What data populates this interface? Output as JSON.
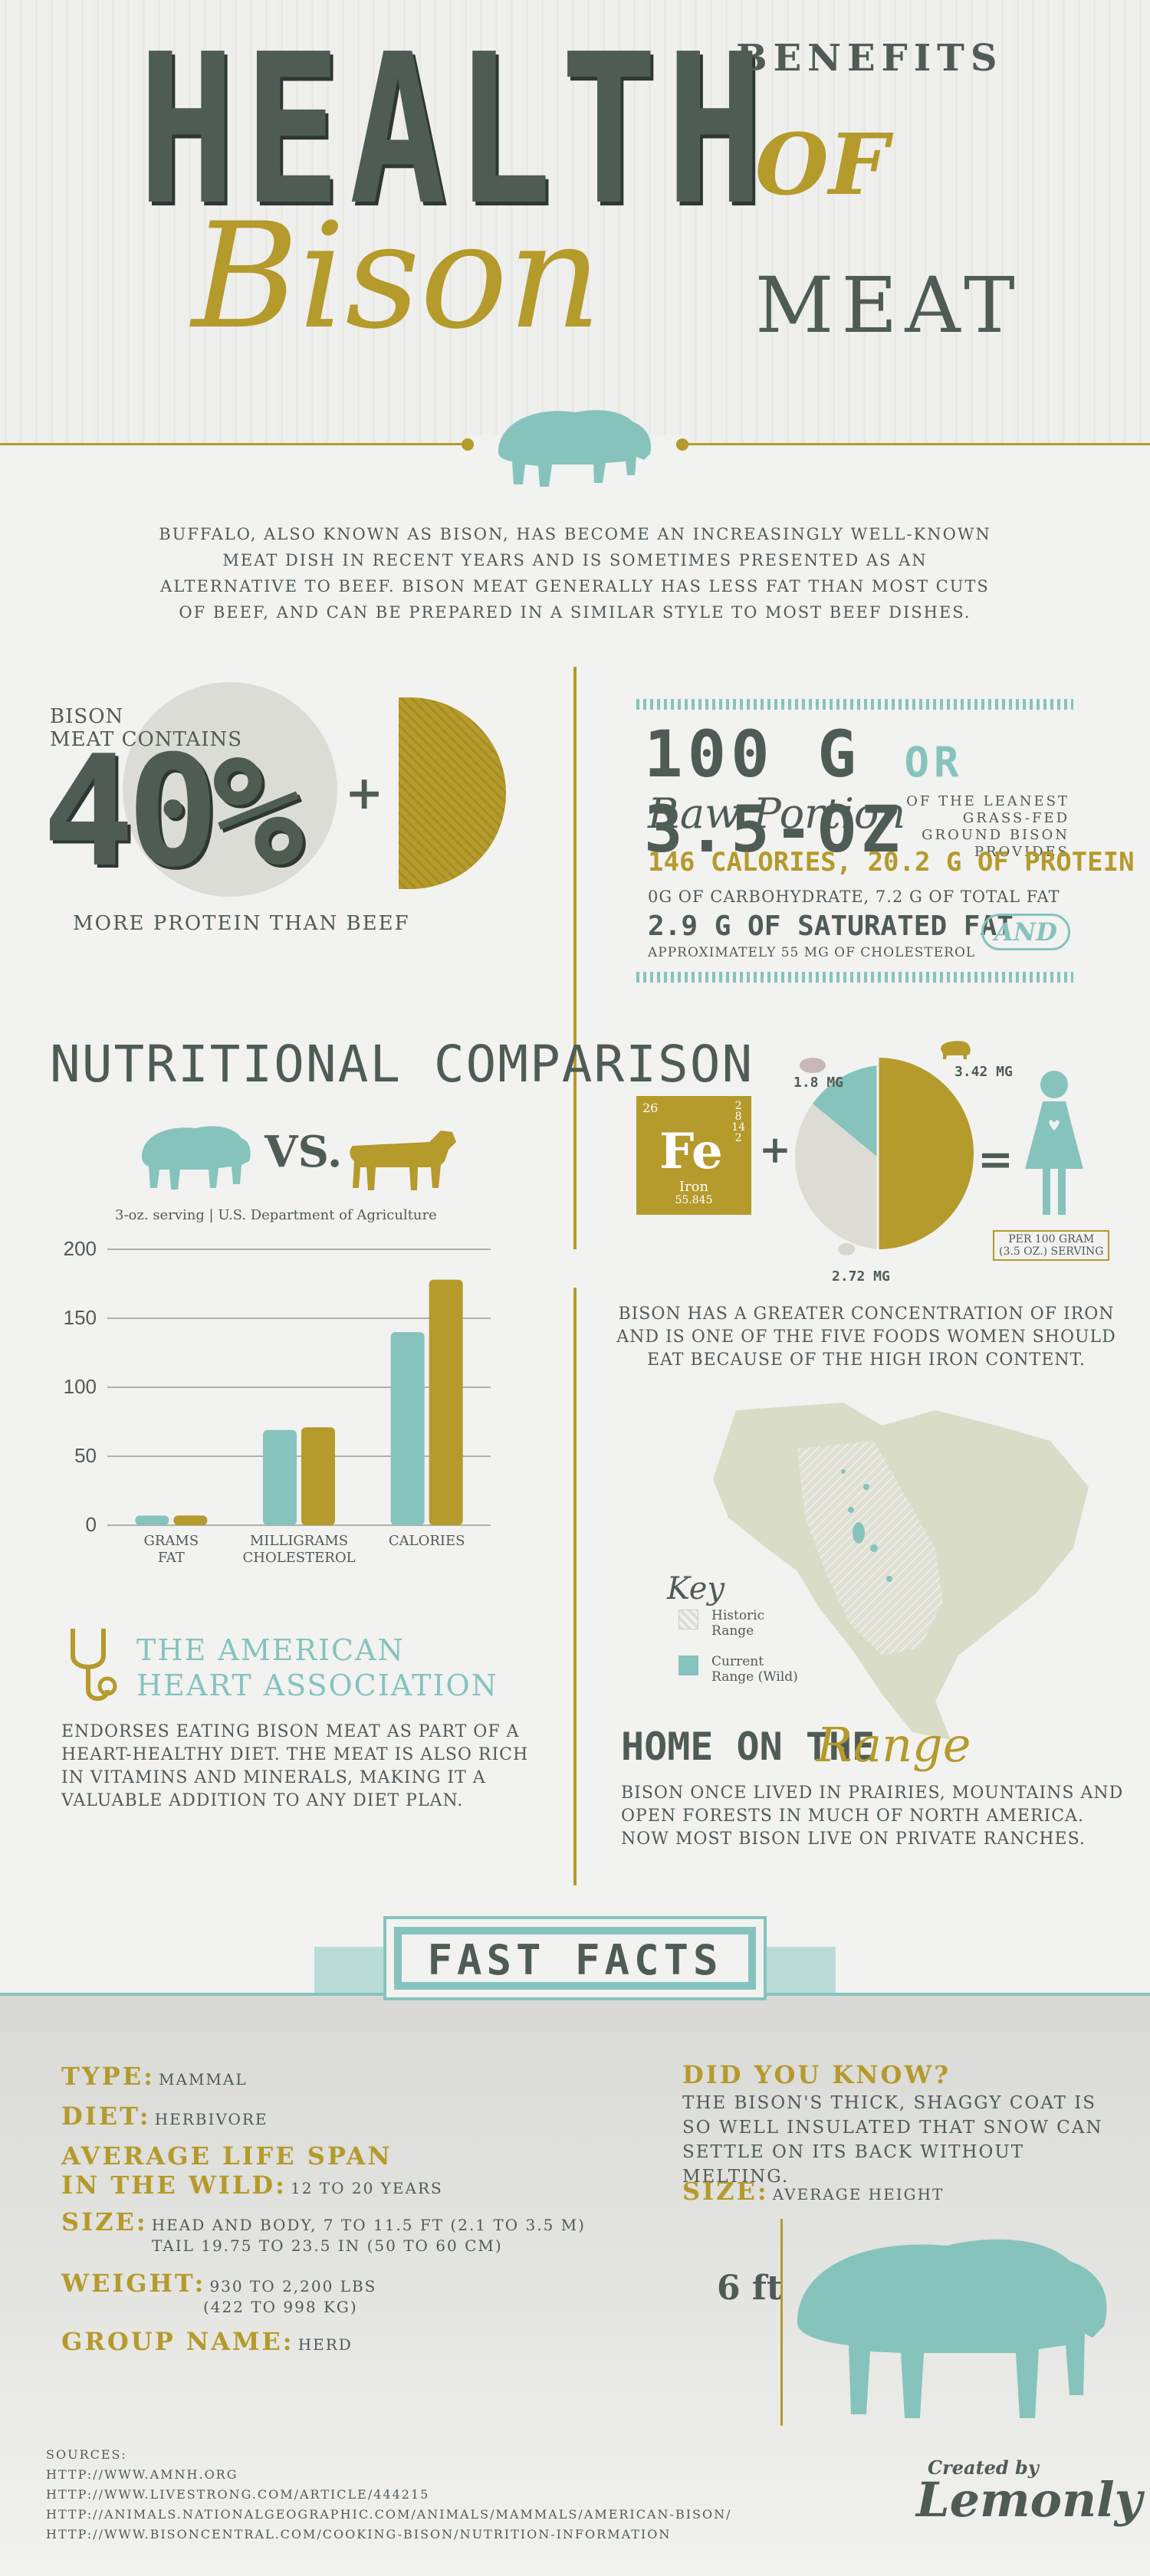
{
  "header": {
    "health": "HEALTH",
    "benefits": "BENEFITS",
    "of": "OF",
    "bison": "Bison",
    "meat": "MEAT"
  },
  "intro": "Buffalo, also known as bison, has become an increasingly well-known meat dish in recent years and is sometimes presented as an alternative to beef. Bison meat generally has less fat than most cuts of beef, and can be prepared in a similar style to most beef dishes.",
  "protein": {
    "contains_line1": "Bison",
    "contains_line2": "meat contains",
    "percent": "40%",
    "plus": "+",
    "more": "More protein than beef"
  },
  "portion": {
    "amount_a": "100 G",
    "or": "OR",
    "amount_b": "3.5-OZ",
    "raw": "Raw Portion",
    "leanest": "of the leanest grass-fed ground bison provides",
    "calories": "146 CALORIES, 20.2 G OF PROTEIN",
    "carbs": "0G of carbohydrate, 7.2 G of total fat",
    "satfat": "2.9 G OF SATURATED FAT",
    "cholesterol": "approximately 55 MG of cholesterol",
    "and": "AND"
  },
  "comparison": {
    "title": "NUTRITIONAL COMPARISON",
    "vs": "VS.",
    "serving": "3-oz. serving | U.S. Department of Agriculture"
  },
  "chart_data": {
    "type": "bar",
    "categories": [
      "GRAMS\nFAT",
      "MILLIGRAMS\nCHOLESTEROL",
      "CALORIES"
    ],
    "series": [
      {
        "values": [
          7,
          69,
          140
        ],
        "color": "#86c3bd"
      },
      {
        "values": [
          7,
          71,
          178
        ],
        "color": "#b59a2c"
      }
    ],
    "yticks": [
      0,
      50,
      100,
      150,
      200
    ],
    "ylim": [
      0,
      200
    ]
  },
  "iron": {
    "atomic_number": "26",
    "shells": "2\n8\n14\n2",
    "symbol": "Fe",
    "name": "Iron",
    "mass": "55.845",
    "plus": "+",
    "equals": "=",
    "mg_bison": "3.42 MG",
    "mg_pork": "1.8 MG",
    "mg_chicken": "2.72 MG",
    "per_line1": "PER 100 GRAM",
    "per_line2": "(3.5 OZ.) SERVING",
    "text": "Bison has a greater concentration of iron and is one of the five foods women should eat because of the high iron content."
  },
  "aha": {
    "title_line1": "The American",
    "title_line2": "Heart Association",
    "text": "Endorses eating bison meat as part of a heart-healthy diet. The meat is also rich in vitamins and minerals, making it a valuable addition to any diet plan."
  },
  "map": {
    "key": "Key",
    "historic_1": "Historic",
    "historic_2": "Range",
    "current_1": "Current",
    "current_2": "Range (Wild)",
    "home": "HOME ON THE",
    "range": "Range",
    "text": "Bison once lived in prairies, mountains and open forests in much of North America. Now most bison live on private ranches."
  },
  "fast_facts": {
    "title": "FAST FACTS",
    "type_label": "Type:",
    "type_value": "Mammal",
    "diet_label": "Diet:",
    "diet_value": "Herbivore",
    "life_label_1": "Average Life Span",
    "life_label_2": "in the Wild:",
    "life_value": "12 to 20 years",
    "size_label": "Size:",
    "size_value_1": "Head and body, 7 to 11.5 ft (2.1 to 3.5 m)",
    "size_value_2": "Tail 19.75 to 23.5 in (50 to 60 cm)",
    "weight_label": "Weight:",
    "weight_value_1": "930 to 2,200 lbs",
    "weight_value_2": "(422 to 998 kg)",
    "group_label": "Group Name:",
    "group_value": "Herd",
    "dyk_label": "Did You Know?",
    "dyk_text": "The bison's thick, shaggy coat is so well insulated that snow can settle on its back without melting.",
    "size2_label": "Size:",
    "size2_value": "Average Height",
    "height": "6 ft"
  },
  "sources": {
    "label": "Sources:",
    "s1": "http://www.amnh.org",
    "s2": "http://www.livestrong.com/article/444215",
    "s3": "http://animals.nationalgeographic.com/animals/mammals/american-bison/",
    "s4": "http://www.bisoncentral.com/cooking-bison/nutrition-information"
  },
  "credit": {
    "created": "Created by",
    "brand": "Lemonly"
  },
  "colors": {
    "teal": "#86c3bd",
    "gold": "#b59a2c",
    "slate": "#4f5c54"
  }
}
